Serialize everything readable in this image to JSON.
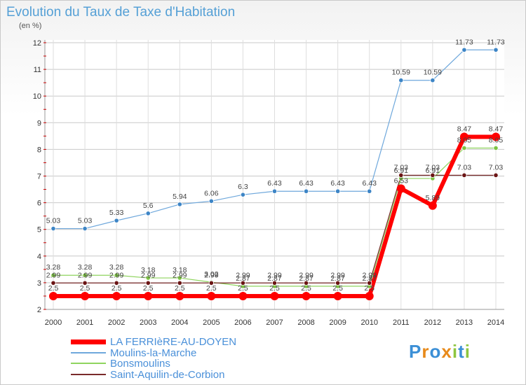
{
  "header": {
    "title": "Evolution du Taux de Taxe d'Habitation",
    "unit": "(en %)"
  },
  "brand": {
    "text": "Proxiti",
    "letters": [
      "P",
      "r",
      "o",
      "x",
      "i",
      "t",
      "i"
    ],
    "colors": [
      "#3b8fd6",
      "#e88a1a",
      "#3b8fd6",
      "#e88a1a",
      "#8dc63f",
      "#3b8fd6",
      "#8dc63f"
    ]
  },
  "chart_data": {
    "type": "line",
    "x": [
      2000,
      2001,
      2002,
      2003,
      2004,
      2005,
      2006,
      2007,
      2008,
      2009,
      2010,
      2011,
      2012,
      2013,
      2014
    ],
    "ylim": [
      2,
      12
    ],
    "yticks": [
      2,
      3,
      4,
      5,
      6,
      7,
      8,
      9,
      10,
      11,
      12
    ],
    "grid": true,
    "legend_position": "bottom-left",
    "series": [
      {
        "name": "LA FERRIèRE-AU-DOYEN",
        "color": "#ff0000",
        "marker": "#ff0000",
        "width": 6,
        "values": [
          2.5,
          2.5,
          2.5,
          2.5,
          2.5,
          2.5,
          2.5,
          2.5,
          2.5,
          2.5,
          2.5,
          6.53,
          5.89,
          8.47,
          8.47
        ],
        "labels": [
          "2.5",
          "2.5",
          "2.5",
          "2.5",
          "2.5",
          "2.5",
          "2.5",
          "2.5",
          "2.5",
          "2.5",
          "2.5",
          "6.53",
          "5.89",
          "8.47",
          "8.47"
        ]
      },
      {
        "name": "Moulins-la-Marche",
        "color": "#6fa8dc",
        "marker": "#3d85c6",
        "width": 1.2,
        "values": [
          5.03,
          5.03,
          5.33,
          5.6,
          5.94,
          6.06,
          6.3,
          6.43,
          6.43,
          6.43,
          6.43,
          10.59,
          10.59,
          11.73,
          11.73
        ],
        "labels": [
          "5.03",
          "5.03",
          "5.33",
          "5.6",
          "5.94",
          "6.06",
          "6.3",
          "6.43",
          "6.43",
          "6.43",
          "6.43",
          "10.59",
          "10.59",
          "11.73",
          "11.73"
        ]
      },
      {
        "name": "Bonsmoulins",
        "color": "#8fd45e",
        "marker": "#7cc242",
        "width": 1.2,
        "values": [
          3.28,
          3.28,
          3.28,
          3.18,
          3.18,
          3.02,
          2.87,
          2.87,
          2.87,
          2.87,
          2.87,
          6.91,
          6.91,
          8.05,
          8.05
        ],
        "labels": [
          "3.28",
          "3.28",
          "3.28",
          "3.18",
          "3.18",
          "3.02",
          "2.87",
          "2.87",
          "2.87",
          "2.87",
          "2.87",
          "6.91",
          "6.91",
          "8.05",
          "8.05"
        ]
      },
      {
        "name": "Saint-Aquilin-de-Corbion",
        "color": "#7a2b2b",
        "marker": "#6b1515",
        "width": 1.2,
        "values": [
          2.99,
          2.99,
          2.99,
          2.99,
          2.99,
          2.99,
          2.99,
          2.99,
          2.99,
          2.99,
          2.99,
          7.03,
          7.03,
          7.03,
          7.03
        ],
        "labels": [
          "2.99",
          "2.99",
          "2.99",
          "2.99",
          "2.99",
          "2.99",
          "2.99",
          "2.99",
          "2.99",
          "2.99",
          "2.99",
          "7.03",
          "7.03",
          "7.03",
          "7.03"
        ]
      }
    ]
  }
}
